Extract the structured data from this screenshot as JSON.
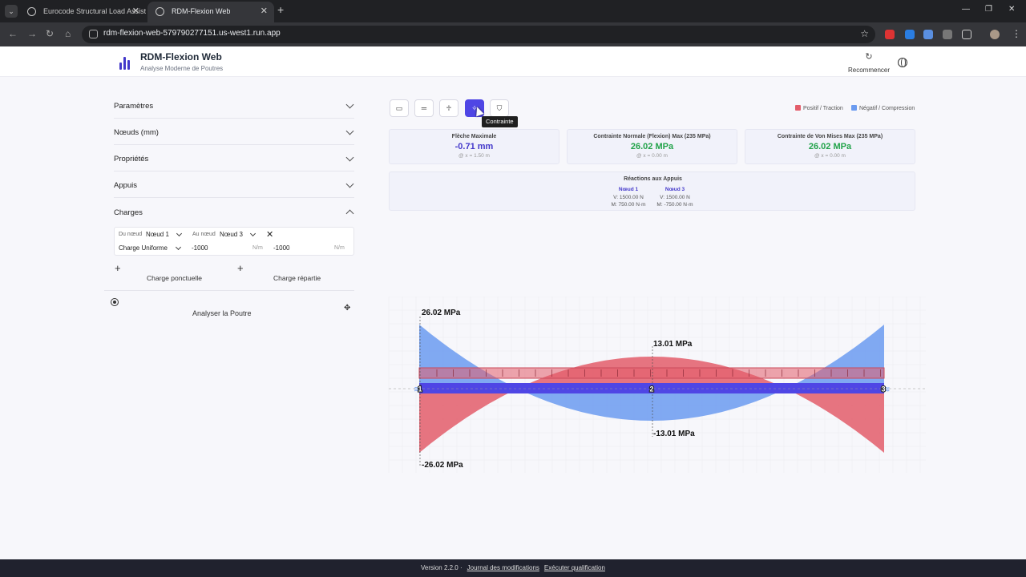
{
  "browser": {
    "tabs": [
      {
        "title": "Eurocode Structural Load Assist"
      },
      {
        "title": "RDM-Flexion Web"
      }
    ],
    "url": "rdm-flexion-web-579790277151.us-west1.run.app"
  },
  "app": {
    "title": "RDM-Flexion Web",
    "subtitle": "Analyse Moderne de Poutres",
    "restart_label": "Recommencer"
  },
  "sidebar": {
    "sections": [
      {
        "label": "Paramètres",
        "expanded": false
      },
      {
        "label": "Nœuds (mm)",
        "expanded": false
      },
      {
        "label": "Propriétés",
        "expanded": false
      },
      {
        "label": "Appuis",
        "expanded": false
      },
      {
        "label": "Charges",
        "expanded": true
      }
    ],
    "charge": {
      "from_label": "Du nœud",
      "from_value": "Nœud 1",
      "to_label": "Au nœud",
      "to_value": "Nœud 3",
      "type": "Charge Uniforme",
      "value_start": "-1000",
      "value_end": "-1000",
      "unit": "N/m"
    },
    "add_point_load": "Charge ponctuelle",
    "add_distributed_load": "Charge répartie",
    "analyze_label": "Analyser la Poutre"
  },
  "toolbar": {
    "active_tooltip": "Contrainte",
    "legend_positive": "Positif / Traction",
    "legend_negative": "Négatif / Compression",
    "color_positive": "#e35d6a",
    "color_negative": "#6b9bf0"
  },
  "results": {
    "cards": [
      {
        "title": "Flèche Maximale",
        "value": "-0.71 mm",
        "sub": "@ x = 1.50 m",
        "color": "#4338ca"
      },
      {
        "title": "Contrainte Normale (Flexion) Max (235 MPa)",
        "value": "26.02 MPa",
        "sub": "@ x = 0.00 m",
        "color": "#22a34a"
      },
      {
        "title": "Contrainte de Von Mises Max (235 MPa)",
        "value": "26.02 MPa",
        "sub": "@ x = 0.00 m",
        "color": "#22a34a"
      }
    ],
    "reactions_title": "Réactions aux Appuis",
    "reactions": [
      {
        "node": "Nœud 1",
        "v": "V: 1500.00 N",
        "m": "M: 750.00 N·m"
      },
      {
        "node": "Nœud 3",
        "v": "V: 1500.00 N",
        "m": "M: -750.00 N·m"
      }
    ]
  },
  "diagram": {
    "labels": {
      "top_left": "26.02 MPa",
      "top_mid": "13.01 MPa",
      "bottom_mid": "-13.01 MPa",
      "bottom_left": "-26.02 MPa"
    },
    "nodes": [
      "1",
      "2",
      "3"
    ],
    "beam_length_m": 3,
    "stress_end_mpa": 26.02,
    "stress_mid_mpa": 13.01
  },
  "footer": {
    "version": "Version 2.2.0 ·",
    "changelog": "Journal des modifications",
    "qualification": "Exécuter qualification"
  }
}
